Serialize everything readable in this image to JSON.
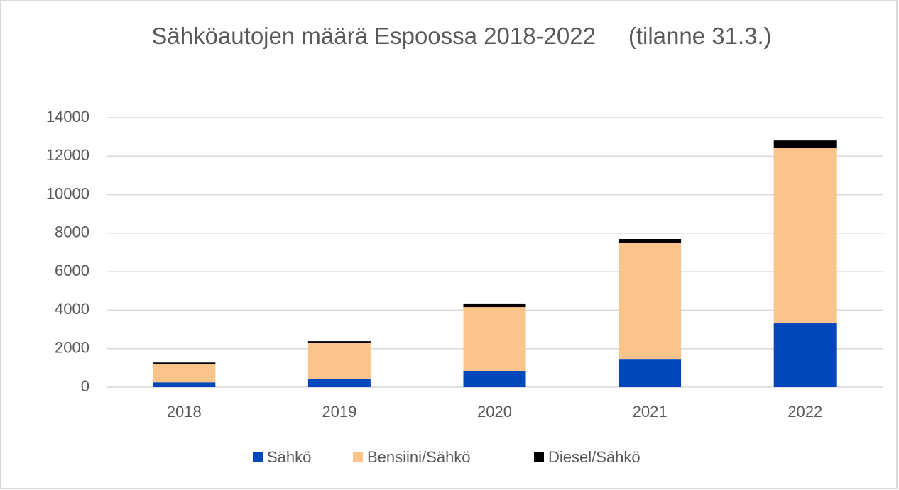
{
  "chart_data": {
    "type": "stacked_bar",
    "title": "Sähköautojen määrä Espoossa 2018-2022     (tilanne 31.3.)",
    "categories": [
      "2018",
      "2019",
      "2020",
      "2021",
      "2022"
    ],
    "series": [
      {
        "name": "Sähkö",
        "color": "#0047bb",
        "values": [
          250,
          440,
          850,
          1470,
          3315
        ]
      },
      {
        "name": "Bensiini/Sähkö",
        "color": "#fbc48a",
        "values": [
          950,
          1850,
          3310,
          6040,
          9100
        ]
      },
      {
        "name": "Diesel/Sähkö",
        "color": "#000000",
        "values": [
          80,
          100,
          190,
          190,
          400
        ]
      }
    ],
    "ylim": [
      0,
      14000
    ],
    "yticks": [
      0,
      2000,
      4000,
      6000,
      8000,
      10000,
      12000,
      14000
    ],
    "grid": true,
    "legend": "bottom"
  }
}
